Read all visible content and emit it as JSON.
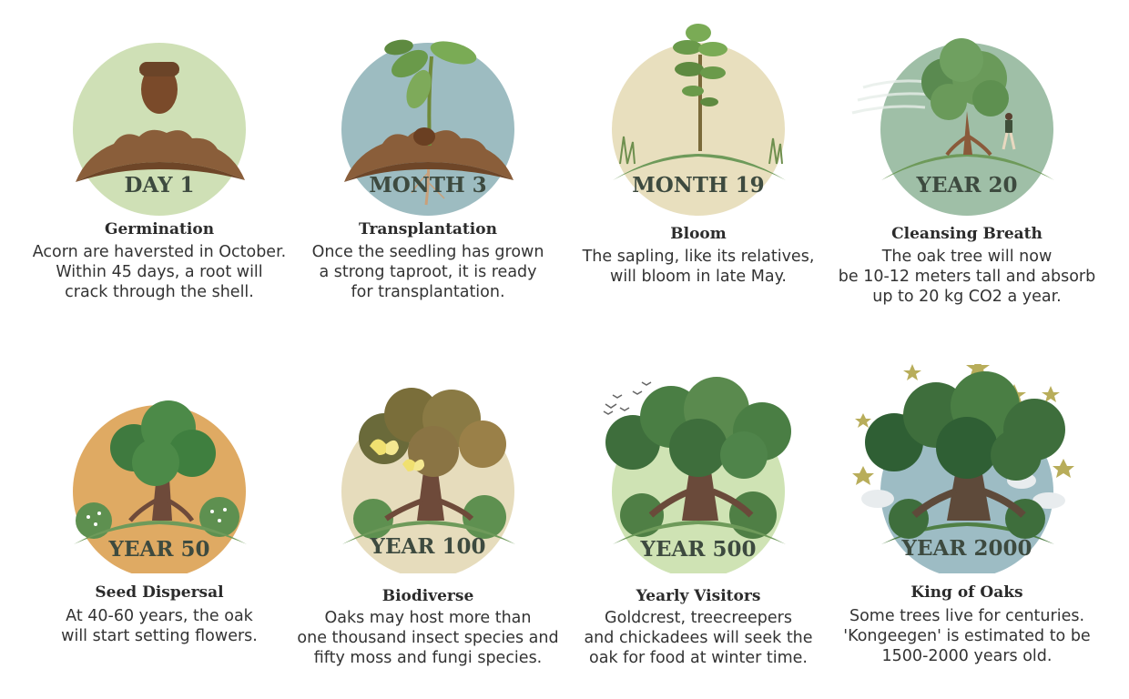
{
  "stages": [
    {
      "label": "DAY 1",
      "title": "Germination",
      "lines": [
        "Acorn are haversted in October.",
        "Within 45 days, a root will",
        "crack through the shell."
      ],
      "colors": {
        "circle": "#cfe0b6"
      }
    },
    {
      "label": "MONTH 3",
      "title": "Transplantation",
      "lines": [
        "Once the seedling has grown",
        "a strong taproot, it is ready",
        "for transplantation."
      ],
      "colors": {
        "circle": "#9dbcc1"
      }
    },
    {
      "label": "MONTH 19",
      "title": "Bloom",
      "lines": [
        "The sapling, like its relatives,",
        "will bloom in late May."
      ],
      "colors": {
        "circle": "#e8dfbe"
      }
    },
    {
      "label": "YEAR 20",
      "title": "Cleansing Breath",
      "lines": [
        "The oak tree will now",
        "be 10-12 meters tall and absorb",
        "up to 20 kg CO2 a year."
      ],
      "colors": {
        "circle": "#9fbfa7"
      }
    },
    {
      "label": "YEAR 50",
      "title": "Seed Dispersal",
      "lines": [
        "At 40-60 years, the oak",
        "will start setting flowers."
      ],
      "colors": {
        "circle": "#dfaa63"
      }
    },
    {
      "label": "YEAR 100",
      "title": "Biodiverse",
      "lines": [
        "Oaks may host more than",
        "one thousand insect species and",
        "fifty moss and fungi species."
      ],
      "colors": {
        "circle": "#e6dcbc"
      }
    },
    {
      "label": "YEAR 500",
      "title": "Yearly Visitors",
      "lines": [
        "Goldcrest, treecreepers",
        "and chickadees will seek the",
        "oak for food at winter time."
      ],
      "colors": {
        "circle": "#cfe3b4"
      }
    },
    {
      "label": "YEAR 2000",
      "title": "King of Oaks",
      "lines": [
        "Some trees live for centuries.",
        "'Kongeegen' is estimated to be",
        "1500-2000 years old."
      ],
      "colors": {
        "circle": "#9dbcc4"
      }
    }
  ]
}
